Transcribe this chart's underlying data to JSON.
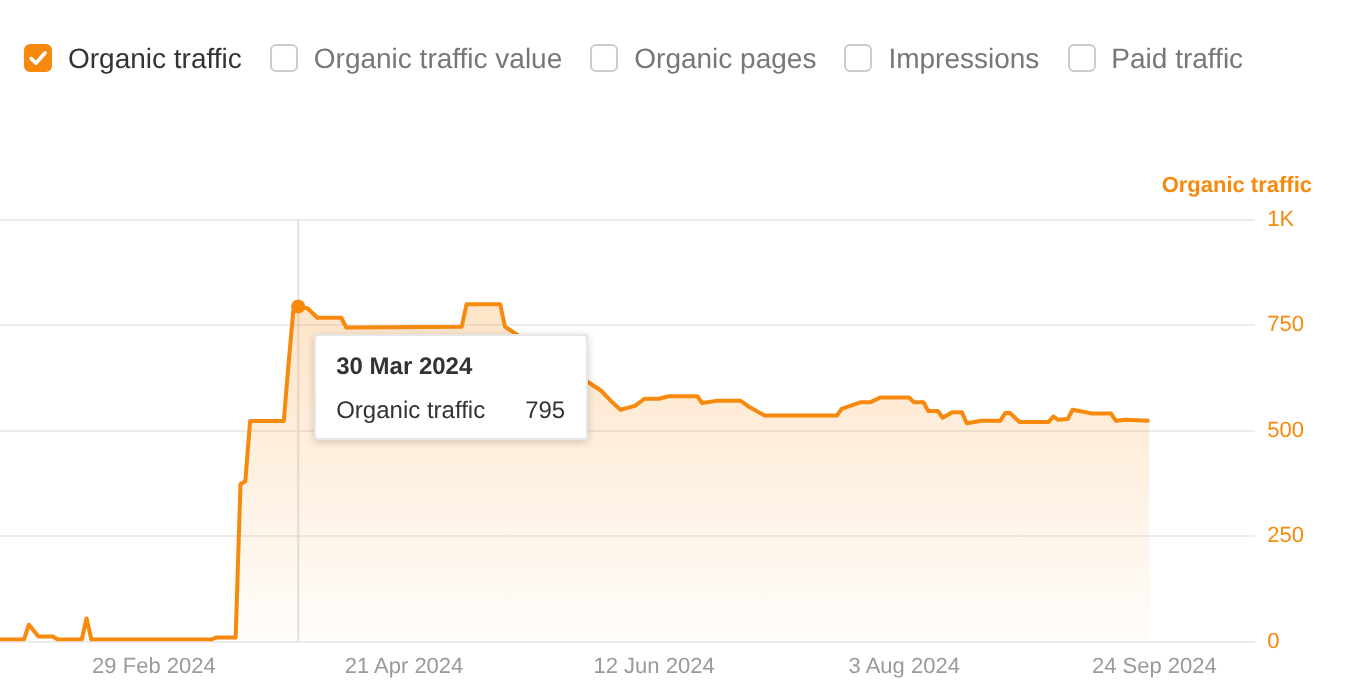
{
  "chart_data": {
    "type": "area",
    "x": [
      "2024-01-28",
      "2024-02-02",
      "2024-02-03",
      "2024-02-05",
      "2024-02-08",
      "2024-02-09",
      "2024-02-14",
      "2024-02-15",
      "2024-02-16",
      "2024-03-12",
      "2024-03-13",
      "2024-03-17",
      "2024-03-18",
      "2024-03-19",
      "2024-03-20",
      "2024-03-27",
      "2024-03-28",
      "2024-03-29",
      "2024-03-30",
      "2024-04-01",
      "2024-04-03",
      "2024-04-08",
      "2024-04-09",
      "2024-05-03",
      "2024-05-04",
      "2024-05-11",
      "2024-05-12",
      "2024-06-01",
      "2024-06-03",
      "2024-06-05",
      "2024-06-08",
      "2024-06-10",
      "2024-06-13",
      "2024-06-15",
      "2024-06-21",
      "2024-06-22",
      "2024-06-25",
      "2024-06-30",
      "2024-07-02",
      "2024-07-05",
      "2024-07-20",
      "2024-07-21",
      "2024-07-25",
      "2024-07-27",
      "2024-07-29",
      "2024-08-04",
      "2024-08-05",
      "2024-08-07",
      "2024-08-08",
      "2024-08-10",
      "2024-08-11",
      "2024-08-13",
      "2024-08-15",
      "2024-08-16",
      "2024-08-19",
      "2024-08-23",
      "2024-08-24",
      "2024-08-25",
      "2024-08-27",
      "2024-09-02",
      "2024-09-03",
      "2024-09-04",
      "2024-09-06",
      "2024-09-07",
      "2024-09-09",
      "2024-09-11",
      "2024-09-15",
      "2024-09-16",
      "2024-09-18",
      "2024-09-23"
    ],
    "series": [
      {
        "name": "Organic traffic",
        "color": "#f7890c",
        "values": [
          5,
          5,
          40,
          12,
          12,
          5,
          5,
          55,
          5,
          5,
          10,
          10,
          374,
          380,
          523,
          523,
          659,
          787,
          795,
          790,
          768,
          768,
          745,
          747,
          800,
          800,
          747,
          595,
          571,
          550,
          559,
          576,
          576,
          582,
          582,
          566,
          571,
          571,
          555,
          536,
          536,
          552,
          568,
          568,
          579,
          579,
          568,
          568,
          547,
          547,
          531,
          544,
          544,
          518,
          524,
          524,
          542,
          542,
          521,
          521,
          534,
          526,
          528,
          550,
          546,
          541,
          541,
          524,
          526,
          524
        ]
      }
    ],
    "ylabel": "Organic traffic",
    "xlim": [
      "2024-01-28",
      "2024-10-15"
    ],
    "xticks": [
      {
        "value": "2024-02-29",
        "label": "29 Feb 2024"
      },
      {
        "value": "2024-04-21",
        "label": "21 Apr 2024"
      },
      {
        "value": "2024-06-12",
        "label": "12 Jun 2024"
      },
      {
        "value": "2024-08-03",
        "label": "3 Aug 2024"
      },
      {
        "value": "2024-09-24",
        "label": "24 Sep 2024"
      }
    ],
    "ylim": [
      0,
      1000
    ],
    "yticks": [
      0,
      250,
      500,
      750,
      {
        "value": 1000,
        "label": "1K"
      }
    ],
    "grid": "y",
    "legend": "top left",
    "marker": "none",
    "annotations": [
      "Organic traffic value",
      "Organic pages",
      "Impressions",
      "Paid traffic",
      {
        "text": "30 Mar 2024",
        "x": "2024-03-30",
        "y": 795
      },
      "Organic traffic",
      "795"
    ],
    "ref_lines": [
      {
        "axis": "x",
        "value": "2024-03-30",
        "color": "#e3e3e3"
      }
    ]
  }
}
